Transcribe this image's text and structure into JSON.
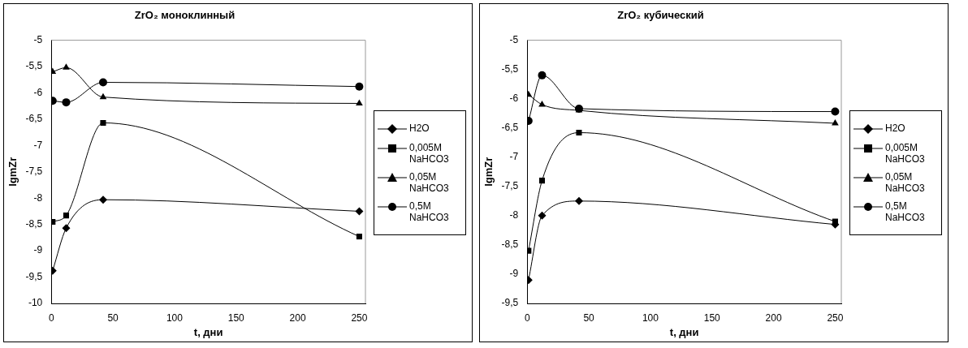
{
  "chart_data": [
    {
      "type": "line",
      "title": "ZrO₂ моноклинный",
      "xlabel": "t, дни",
      "ylabel": "lgmZr",
      "xlim": [
        0,
        255
      ],
      "xticks": [
        0,
        50,
        100,
        150,
        200,
        250
      ],
      "ylim": [
        -10,
        -5
      ],
      "yticks": [
        {
          "value": -10,
          "label": "-10"
        },
        {
          "value": -9.5,
          "label": "-9,5"
        },
        {
          "value": -9,
          "label": "-9"
        },
        {
          "value": -8.5,
          "label": "-8,5"
        },
        {
          "value": -8,
          "label": "-8"
        },
        {
          "value": -7.5,
          "label": "-7,5"
        },
        {
          "value": -7,
          "label": "-7"
        },
        {
          "value": -6.5,
          "label": "-6,5"
        },
        {
          "value": -6,
          "label": "-6"
        },
        {
          "value": -5.5,
          "label": "-5,5"
        },
        {
          "value": -5,
          "label": "-5"
        }
      ],
      "grid": false,
      "legend": "right",
      "line_style": "solid",
      "x": [
        1,
        12,
        42,
        250
      ],
      "series": [
        {
          "name": "H2O",
          "color": "#000000",
          "marker": "diamond",
          "values": [
            -9.38,
            -8.57,
            -8.03,
            -8.25
          ]
        },
        {
          "name": "0,005M NaHCO3",
          "color": "#000000",
          "marker": "square",
          "values": [
            -8.45,
            -8.33,
            -6.57,
            -8.73
          ]
        },
        {
          "name": "0,05M NaHCO3",
          "color": "#000000",
          "marker": "triangle",
          "values": [
            -5.6,
            -5.52,
            -6.08,
            -6.2
          ]
        },
        {
          "name": "0,5M NaHCO3",
          "color": "#000000",
          "marker": "circle",
          "values": [
            -6.15,
            -6.18,
            -5.8,
            -5.88
          ]
        }
      ]
    },
    {
      "type": "line",
      "title": "ZrO₂ кубический",
      "xlabel": "t, дни",
      "ylabel": "lgmZr",
      "xlim": [
        0,
        255
      ],
      "xticks": [
        0,
        50,
        100,
        150,
        200,
        250
      ],
      "ylim": [
        -9.5,
        -5
      ],
      "yticks": [
        {
          "value": -9.5,
          "label": "-9,5"
        },
        {
          "value": -9,
          "label": "-9"
        },
        {
          "value": -8.5,
          "label": "-8,5"
        },
        {
          "value": -8,
          "label": "-8"
        },
        {
          "value": -7.5,
          "label": "-7,5"
        },
        {
          "value": -7,
          "label": "-7"
        },
        {
          "value": -6.5,
          "label": "-6,5"
        },
        {
          "value": -6,
          "label": "-6"
        },
        {
          "value": -5.5,
          "label": "-5,5"
        },
        {
          "value": -5,
          "label": "-5"
        }
      ],
      "grid": false,
      "legend": "right",
      "line_style": "solid",
      "x": [
        1,
        12,
        42,
        250
      ],
      "series": [
        {
          "name": "H2O",
          "color": "#000000",
          "marker": "diamond",
          "values": [
            -9.1,
            -8.0,
            -7.75,
            -8.15
          ]
        },
        {
          "name": "0,005M NaHCO3",
          "color": "#000000",
          "marker": "square",
          "values": [
            -8.6,
            -7.4,
            -6.58,
            -8.1
          ]
        },
        {
          "name": "0,05M NaHCO3",
          "color": "#000000",
          "marker": "triangle",
          "values": [
            -5.93,
            -6.1,
            -6.2,
            -6.42
          ]
        },
        {
          "name": "0,5M NaHCO3",
          "color": "#000000",
          "marker": "circle",
          "values": [
            -6.38,
            -5.6,
            -6.17,
            -6.22
          ]
        }
      ]
    }
  ]
}
